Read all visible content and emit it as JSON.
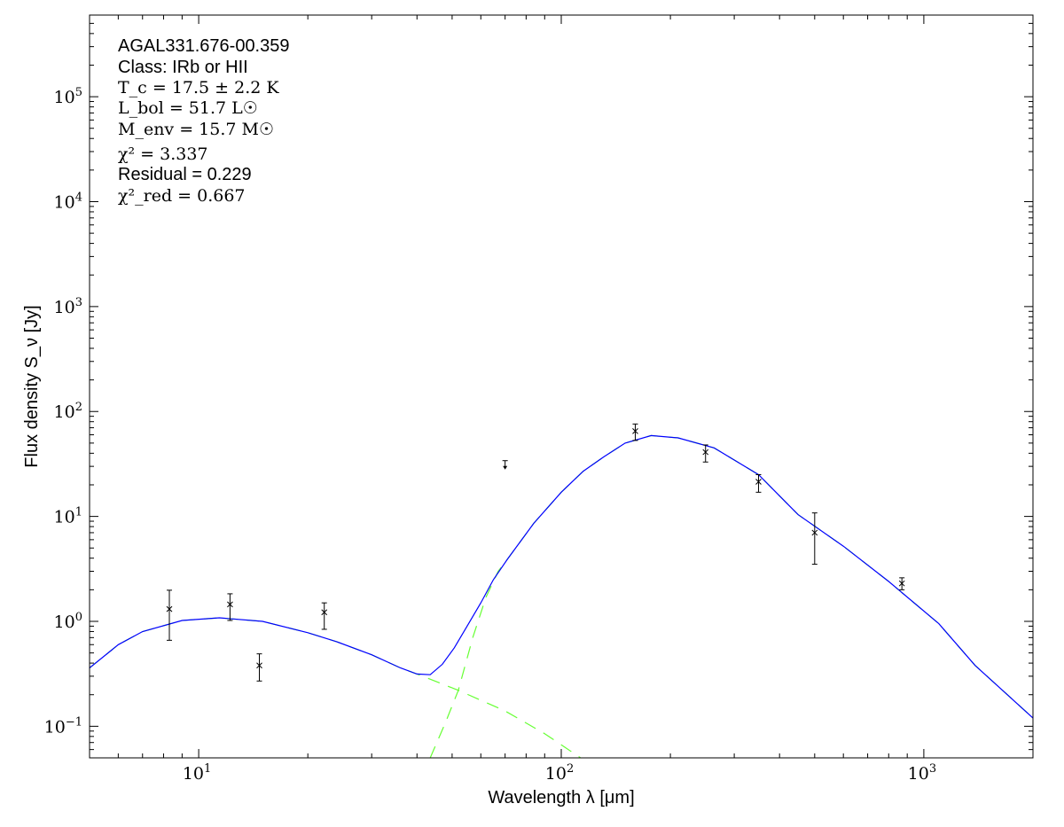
{
  "chart_data": {
    "type": "scatter",
    "xlabel": "Wavelength λ [μm]",
    "ylabel": "Flux density S_ν [Jy]",
    "xscale": "log",
    "yscale": "log",
    "xlim": [
      5,
      2000
    ],
    "ylim": [
      0.05,
      600000
    ],
    "x_tick_labels": [
      {
        "base": "10",
        "exp": "1",
        "value": 10
      },
      {
        "base": "10",
        "exp": "2",
        "value": 100
      },
      {
        "base": "10",
        "exp": "3",
        "value": 1000
      }
    ],
    "y_tick_labels": [
      {
        "base": "10",
        "exp": "−1",
        "value": 0.1
      },
      {
        "base": "10",
        "exp": "0",
        "value": 1
      },
      {
        "base": "10",
        "exp": "1",
        "value": 10
      },
      {
        "base": "10",
        "exp": "2",
        "value": 100
      },
      {
        "base": "10",
        "exp": "3",
        "value": 1000
      },
      {
        "base": "10",
        "exp": "4",
        "value": 10000
      },
      {
        "base": "10",
        "exp": "5",
        "value": 100000
      }
    ],
    "grid": false,
    "annotations": {
      "source": "AGAL331.676-00.359",
      "class": "Class: IRb or HII",
      "tc": "T_c = 17.5 ± 2.2 K",
      "lbol": "L_bol = 51.7 L☉",
      "menv": "M_env = 15.7 M☉",
      "chi2": "χ² = 3.337",
      "residual": "Residual = 0.229",
      "chi2red": "χ²_red = 0.667"
    },
    "colors": {
      "total_model": "#0000ff",
      "components": "#66ff33",
      "data": "#000000"
    },
    "data_points": [
      {
        "x": 8.3,
        "y": 1.31,
        "ylo": 0.66,
        "yhi": 1.98
      },
      {
        "x": 12.2,
        "y": 1.45,
        "ylo": 1.02,
        "yhi": 1.83
      },
      {
        "x": 14.7,
        "y": 0.38,
        "ylo": 0.27,
        "yhi": 0.49
      },
      {
        "x": 22.2,
        "y": 1.22,
        "ylo": 0.84,
        "yhi": 1.5
      },
      {
        "x": 160,
        "y": 65,
        "ylo": 53,
        "yhi": 76
      },
      {
        "x": 250,
        "y": 41,
        "ylo": 33,
        "yhi": 48
      },
      {
        "x": 350,
        "y": 21.4,
        "ylo": 17,
        "yhi": 25
      },
      {
        "x": 500,
        "y": 7.0,
        "ylo": 3.5,
        "yhi": 10.8
      },
      {
        "x": 870,
        "y": 2.3,
        "ylo": 2.0,
        "yhi": 2.6
      }
    ],
    "upper_limits": [
      {
        "x": 70,
        "y": 34
      }
    ],
    "total_model": [
      [
        5,
        0.36
      ],
      [
        6,
        0.6
      ],
      [
        7,
        0.8
      ],
      [
        9,
        1.02
      ],
      [
        11.4,
        1.08
      ],
      [
        15,
        1.0
      ],
      [
        20,
        0.78
      ],
      [
        24,
        0.64
      ],
      [
        30,
        0.48
      ],
      [
        36,
        0.36
      ],
      [
        40,
        0.315
      ],
      [
        43.5,
        0.31
      ],
      [
        47,
        0.39
      ],
      [
        50.7,
        0.56
      ],
      [
        55,
        0.9
      ],
      [
        60,
        1.5
      ],
      [
        65,
        2.5
      ],
      [
        71,
        3.9
      ],
      [
        84,
        8.6
      ],
      [
        100,
        17
      ],
      [
        115,
        27
      ],
      [
        131,
        37
      ],
      [
        150,
        50
      ],
      [
        177,
        59
      ],
      [
        210,
        56
      ],
      [
        264,
        45
      ],
      [
        350,
        25
      ],
      [
        450,
        10.4
      ],
      [
        600,
        5.2
      ],
      [
        800,
        2.4
      ],
      [
        1100,
        0.95
      ],
      [
        1385,
        0.38
      ],
      [
        2000,
        0.12
      ]
    ],
    "warm_component": [
      [
        5,
        0.36
      ],
      [
        6,
        0.6
      ],
      [
        7,
        0.8
      ],
      [
        9,
        1.02
      ],
      [
        11.4,
        1.08
      ],
      [
        15,
        1.0
      ],
      [
        20,
        0.78
      ],
      [
        24,
        0.64
      ],
      [
        30,
        0.48
      ],
      [
        36,
        0.36
      ],
      [
        40,
        0.315
      ],
      [
        52,
        0.22
      ],
      [
        70,
        0.14
      ],
      [
        90,
        0.085
      ],
      [
        114,
        0.049
      ]
    ],
    "cold_component": [
      [
        43.5,
        0.05
      ],
      [
        48,
        0.11
      ],
      [
        52,
        0.22
      ],
      [
        57,
        0.7
      ],
      [
        62,
        1.7
      ],
      [
        67,
        3.0
      ],
      [
        71,
        3.9
      ],
      [
        84,
        8.6
      ],
      [
        100,
        17
      ],
      [
        115,
        27
      ],
      [
        131,
        37
      ],
      [
        150,
        50
      ],
      [
        177,
        59
      ],
      [
        210,
        56
      ],
      [
        264,
        45
      ],
      [
        350,
        25
      ],
      [
        450,
        10.4
      ],
      [
        600,
        5.2
      ],
      [
        800,
        2.4
      ],
      [
        1100,
        0.95
      ],
      [
        1385,
        0.38
      ],
      [
        2000,
        0.12
      ]
    ]
  }
}
